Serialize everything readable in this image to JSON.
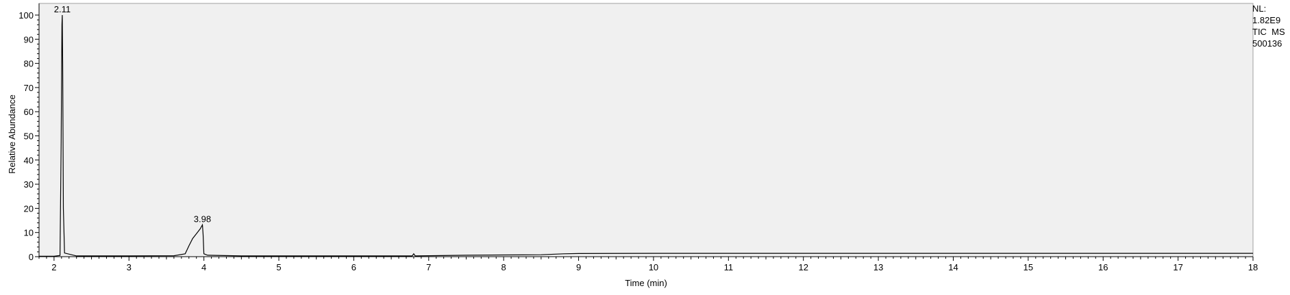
{
  "chart_data": {
    "type": "line",
    "xlabel": "Time (min)",
    "ylabel": "Relative Abundance",
    "xlim": [
      1.8,
      18
    ],
    "ylim": [
      0,
      100
    ],
    "x_ticks": [
      "2",
      "3",
      "4",
      "5",
      "6",
      "7",
      "8",
      "9",
      "10",
      "11",
      "12",
      "13",
      "14",
      "15",
      "16",
      "17",
      "18"
    ],
    "y_ticks": [
      "0",
      "10",
      "20",
      "30",
      "40",
      "50",
      "60",
      "70",
      "80",
      "90",
      "100"
    ],
    "grid": false,
    "series": [
      {
        "x": [
          1.8,
          2.0,
          2.08,
          2.095,
          2.105,
          2.11,
          2.115,
          2.125,
          2.14,
          2.3,
          3.0,
          3.6,
          3.75,
          3.8,
          3.85,
          3.9,
          3.95,
          3.98,
          3.99,
          4.0,
          4.05,
          4.5,
          5.0,
          6.0,
          6.78,
          6.8,
          6.82,
          7.0,
          7.5,
          8.0,
          8.5,
          8.8,
          9.0,
          10.0,
          12.0,
          14.0,
          16.0,
          18.0
        ],
        "y": [
          0.2,
          0.2,
          0.5,
          48,
          96,
          100,
          80,
          20,
          1.5,
          0.3,
          0.3,
          0.4,
          1.2,
          4.5,
          7.5,
          9.5,
          11.5,
          13.2,
          9,
          1.2,
          0.6,
          0.3,
          0.3,
          0.3,
          0.3,
          1.2,
          0.3,
          0.4,
          0.6,
          0.7,
          0.8,
          1.2,
          1.3,
          1.4,
          1.4,
          1.4,
          1.4,
          1.4
        ]
      }
    ],
    "peak_labels": [
      {
        "x": 2.11,
        "y": 100,
        "text": "2.11"
      },
      {
        "x": 3.98,
        "y": 13.2,
        "text": "3.98"
      }
    ]
  },
  "info": {
    "nl_label": "NL:",
    "nl_value": "1.82E9",
    "trace": "TIC  MS",
    "file": "500136"
  },
  "colors": {
    "plot_background": "#f0f0f0",
    "trace": "#000000"
  }
}
